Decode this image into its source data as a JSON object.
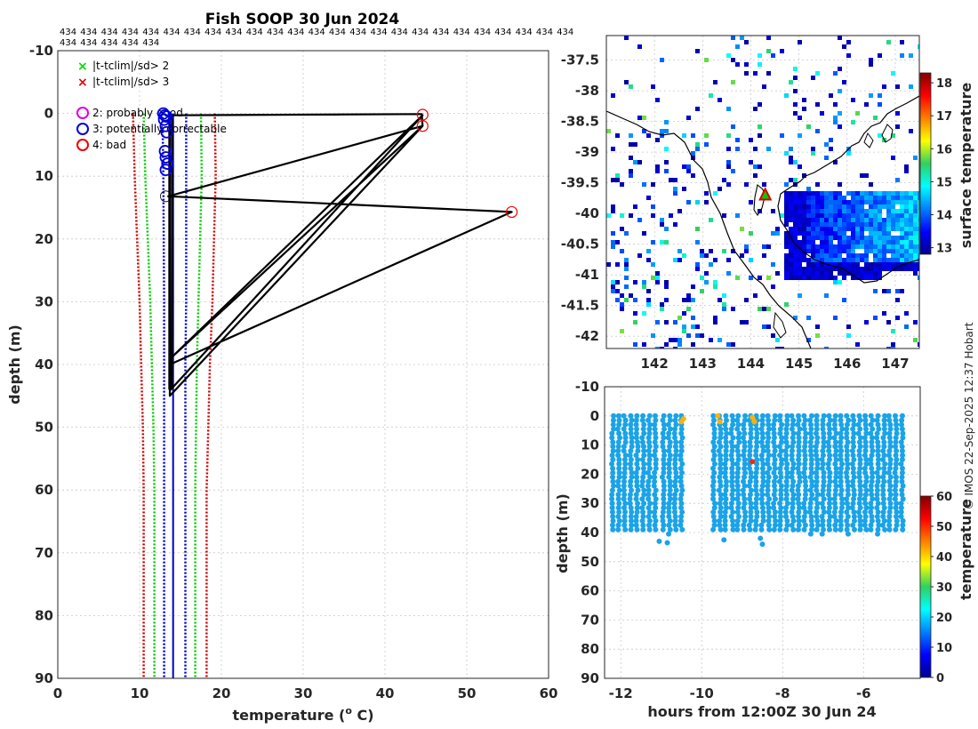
{
  "colors": {
    "clim_sd2": "#00cc00",
    "clim_sd3": "#cc0000",
    "bounds": "#0000cc",
    "profile": "#000000",
    "flag2": "#dd00dd",
    "flag3": "#0000dd",
    "flag4": "#ee0000",
    "coast": "#000000",
    "grid": "#c8c8c8",
    "scatter": "#1aa3e8"
  },
  "chart_data": [
    {
      "type": "line",
      "title": "Fish SOOP 30 Jun 2024",
      "id_label": "434",
      "id_count": 30,
      "xlabel": "temperature (",
      "xlabel_sup": "o",
      "xlabel_end": " C)",
      "ylabel": "depth (m)",
      "xlim": [
        0,
        60
      ],
      "ylim": [
        90,
        -10
      ],
      "xticks": [
        "0",
        "10",
        "20",
        "30",
        "40",
        "50",
        "60"
      ],
      "yticks": [
        "-10",
        "0",
        "10",
        "20",
        "30",
        "40",
        "50",
        "60",
        "70",
        "80",
        "90"
      ],
      "legend": {
        "sd2": "|t-tclim|/sd> 2",
        "sd3": "|t-tclim|/sd> 3",
        "flag2": "2: probably good",
        "flag3": "3: potentially correctable",
        "flag4": "4: bad"
      },
      "series": [
        {
          "name": "clim -3sd",
          "x": [
            9.2,
            9.4,
            9.7,
            10.0,
            10.2,
            10.4,
            10.5,
            10.5
          ],
          "y": [
            0,
            10,
            20,
            30,
            40,
            50,
            60,
            90
          ]
        },
        {
          "name": "clim -2sd",
          "x": [
            10.5,
            10.7,
            11.0,
            11.3,
            11.5,
            11.7,
            11.8,
            11.8
          ],
          "y": [
            0,
            10,
            20,
            30,
            40,
            50,
            60,
            90
          ]
        },
        {
          "name": "clim +2sd",
          "x": [
            17.5,
            17.6,
            17.4,
            17.2,
            17.0,
            16.9,
            16.8,
            16.8
          ],
          "y": [
            0,
            10,
            20,
            30,
            40,
            50,
            60,
            90
          ]
        },
        {
          "name": "clim +3sd",
          "x": [
            19.2,
            19.3,
            19.1,
            18.9,
            18.6,
            18.4,
            18.2,
            18.2
          ],
          "y": [
            0,
            10,
            20,
            30,
            40,
            50,
            60,
            90
          ]
        },
        {
          "name": "bound left",
          "x": [
            12.8,
            12.9,
            13.0,
            13.0,
            13.0,
            13.0,
            13.0
          ],
          "y": [
            0,
            10,
            30,
            40,
            50,
            60,
            90
          ]
        },
        {
          "name": "bound right",
          "x": [
            15.7,
            15.7,
            15.7,
            15.6,
            15.6,
            15.6,
            15.6
          ],
          "y": [
            0,
            10,
            30,
            40,
            50,
            60,
            90
          ]
        },
        {
          "name": "bound inner",
          "x": [
            14.1,
            14.1,
            14.1,
            14.1,
            14.1
          ],
          "y": [
            0,
            20,
            40,
            60,
            90
          ]
        },
        {
          "name": "profile",
          "x": [
            13.5,
            13.6,
            44.5,
            44.6,
            13.5,
            55.5,
            13.7,
            13.7,
            44.6,
            13.8,
            44.6,
            13.8,
            13.7
          ],
          "y": [
            0.5,
            0.3,
            0.1,
            2.0,
            13.2,
            15.7,
            40,
            45,
            2.0,
            39,
            0.3,
            44,
            0.4
          ]
        }
      ],
      "flag3_points": [
        [
          12.9,
          0
        ],
        [
          13.1,
          0.3
        ],
        [
          13.3,
          0.5
        ],
        [
          13.0,
          1
        ],
        [
          13.2,
          2
        ],
        [
          13.3,
          3
        ],
        [
          13.1,
          6
        ],
        [
          13.2,
          7
        ],
        [
          13.4,
          8
        ],
        [
          13.2,
          9
        ]
      ],
      "flag4_points": [
        [
          44.6,
          0.2
        ],
        [
          44.6,
          2.0
        ],
        [
          55.5,
          15.7
        ]
      ],
      "thin_points": [
        [
          13.2,
          13.2
        ]
      ]
    },
    {
      "type": "heatmap",
      "xlim": [
        141,
        147.5
      ],
      "ylim": [
        -42.2,
        -37.1
      ],
      "xticks": [
        "142",
        "143",
        "144",
        "145",
        "146",
        "147"
      ],
      "yticks": [
        "-37.5",
        "-38",
        "-38.5",
        "-39",
        "-39.5",
        "-40",
        "-40.5",
        "-41",
        "-41.5",
        "-42"
      ],
      "colorbar_label": "surface temperature",
      "colorbar_range": [
        12.8,
        18.3
      ],
      "colorbar_ticks": [
        "13",
        "14",
        "15",
        "16",
        "17",
        "18"
      ],
      "marker": {
        "lon": 144.3,
        "lat": -39.7
      }
    },
    {
      "type": "scatter",
      "xlabel": "hours from 12:00Z 30 Jun 24",
      "ylabel": "depth (m)",
      "xlim": [
        -12.4,
        -4.6
      ],
      "ylim": [
        90,
        -10
      ],
      "xticks": [
        "-12",
        "-10",
        "-8",
        "-6"
      ],
      "yticks": [
        "-10",
        "0",
        "10",
        "20",
        "30",
        "40",
        "50",
        "60",
        "70",
        "80",
        "90"
      ],
      "colorbar_label": "temperature",
      "colorbar_range": [
        0,
        60
      ],
      "colorbar_ticks": [
        "0",
        "10",
        "20",
        "30",
        "40",
        "50",
        "60"
      ],
      "profile_times": [
        -12.2,
        -12.05,
        -11.9,
        -11.75,
        -11.6,
        -11.45,
        -11.3,
        -11.15,
        -10.95,
        -10.8,
        -10.65,
        -10.5,
        -9.7,
        -9.55,
        -9.4,
        -9.25,
        -9.1,
        -8.95,
        -8.8,
        -8.65,
        -8.5,
        -8.35,
        -8.2,
        -8.05,
        -7.9,
        -7.75,
        -7.6,
        -7.45,
        -7.3,
        -7.15,
        -7.0,
        -6.85,
        -6.7,
        -6.55,
        -6.4,
        -6.25,
        -6.1,
        -5.95,
        -5.8,
        -5.65,
        -5.5,
        -5.35,
        -5.2,
        -5.05
      ],
      "profile_depth": 40,
      "flagged_points": [
        [
          -10.45,
          1,
          "#ffb000"
        ],
        [
          -10.5,
          2,
          "#ffb000"
        ],
        [
          -9.6,
          0,
          "#ffb000"
        ],
        [
          -9.55,
          2,
          "#ffb000"
        ],
        [
          -8.75,
          0.5,
          "#ffb000"
        ],
        [
          -8.7,
          2,
          "#ffb000"
        ],
        [
          -8.75,
          15.7,
          "#e83010"
        ]
      ]
    }
  ],
  "credit": "© IMOS 22-Sep-2025 12:37 Hobart"
}
